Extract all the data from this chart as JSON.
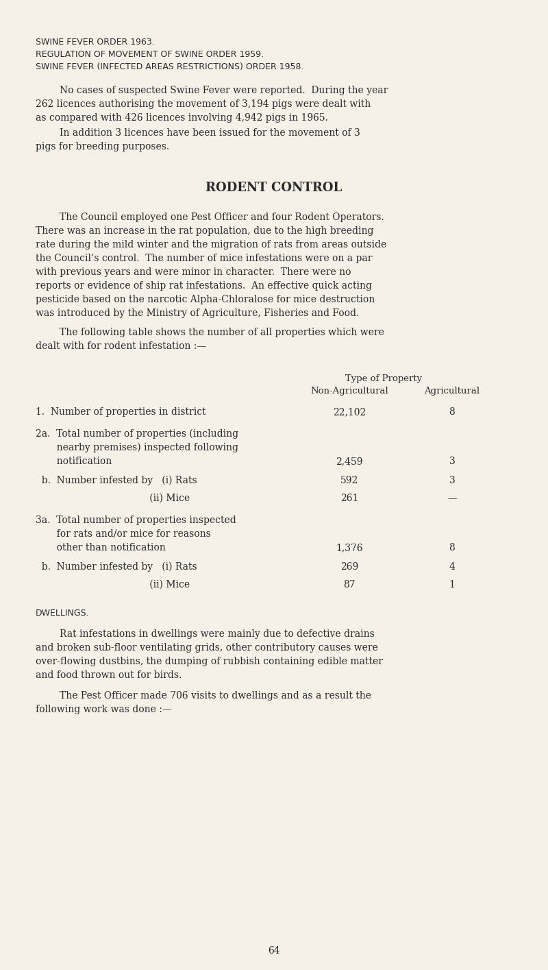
{
  "bg_color": "#f5f0e8",
  "text_color": "#2a2a2a",
  "page_number": "64",
  "header_line1": "SWINE FEVER ORDER 1963.",
  "header_line2": "REGULATION OF MOVEMENT OF SWINE ORDER 1959.",
  "header_line3": "SWINE FEVER (INFECTED AREAS RESTRICTIONS) ORDER 1958.",
  "section_title": "RODENT CONTROL",
  "dwellings_header": "DWELLINGS.",
  "table_header_row0": "Type of Property",
  "table_header_row1_col1": "Non-Agricultural",
  "table_header_row1_col2": "Agricultural"
}
